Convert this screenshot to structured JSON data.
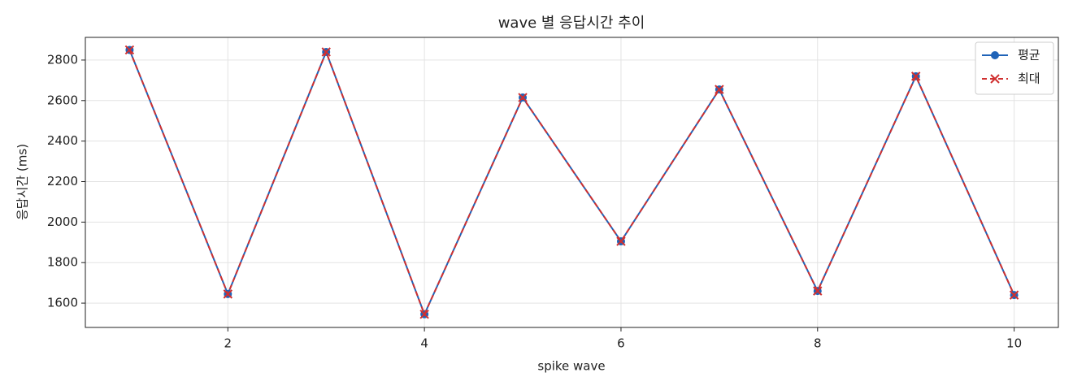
{
  "chart_data": {
    "type": "line",
    "title": "wave 별 응답시간 추이",
    "x_label": "spike wave",
    "y_label": "응답시간 (ms)",
    "x": [
      1,
      2,
      3,
      4,
      5,
      6,
      7,
      8,
      9,
      10
    ],
    "series": [
      {
        "name": "평균",
        "color": "#1f63b8",
        "linestyle": "solid",
        "marker": "circle",
        "values": [
          2850,
          1645,
          2840,
          1545,
          2615,
          1905,
          2655,
          1660,
          2720,
          1640
        ]
      },
      {
        "name": "최대",
        "color": "#d03030",
        "linestyle": "dashed",
        "marker": "x",
        "values": [
          2850,
          1645,
          2840,
          1545,
          2615,
          1905,
          2655,
          1660,
          2720,
          1640
        ]
      }
    ],
    "xlim": [
      0.55,
      10.45
    ],
    "xticks": [
      2,
      4,
      6,
      8,
      10
    ],
    "ylim": [
      1480,
      2912
    ],
    "yticks": [
      1600,
      1800,
      2000,
      2200,
      2400,
      2600,
      2800
    ],
    "grid": true,
    "legend": "upper-right"
  }
}
